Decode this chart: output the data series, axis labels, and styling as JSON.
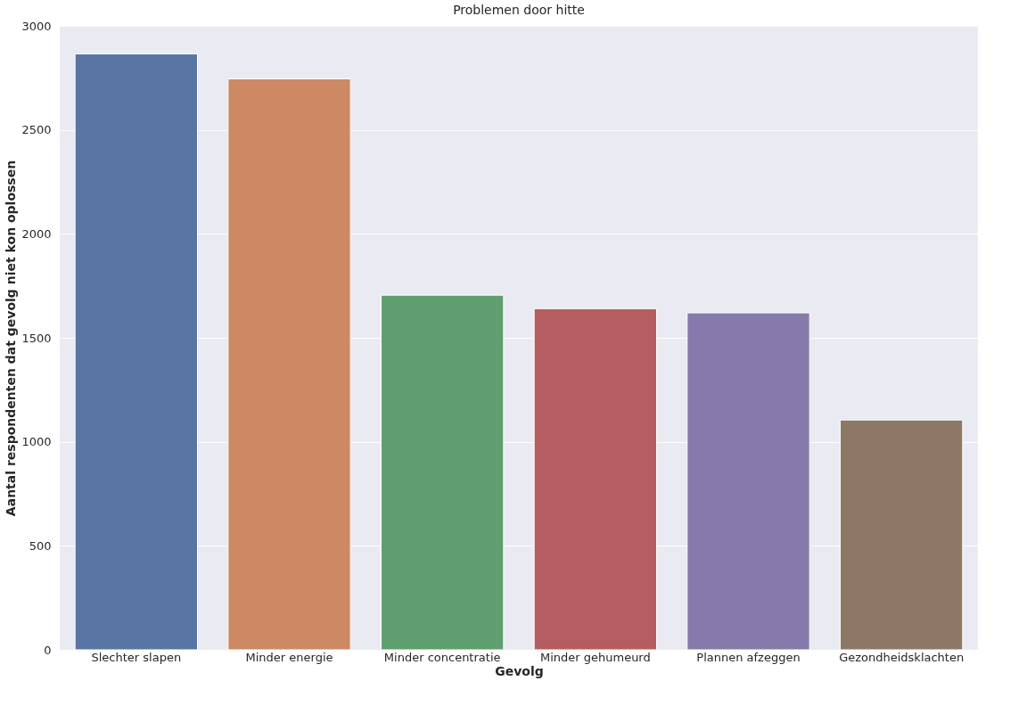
{
  "chart_data": {
    "type": "bar",
    "title": "Problemen door hitte",
    "xlabel": "Gevolg",
    "ylabel": "Aantal respondenten dat gevolg niet kon oplossen",
    "categories": [
      "Slechter slapen",
      "Minder energie",
      "Minder concentratie",
      "Minder gehumeurd",
      "Plannen afzeggen",
      "Gezondheidsklachten"
    ],
    "values": [
      2865,
      2745,
      1705,
      1640,
      1620,
      1105
    ],
    "colors": [
      "#5975a4",
      "#cc8963",
      "#5f9e6e",
      "#b55d60",
      "#857aab",
      "#8d7866"
    ],
    "ylim": [
      0,
      3000
    ],
    "yticks": [
      0,
      500,
      1000,
      1500,
      2000,
      2500,
      3000
    ],
    "grid": "y",
    "legend": false
  }
}
